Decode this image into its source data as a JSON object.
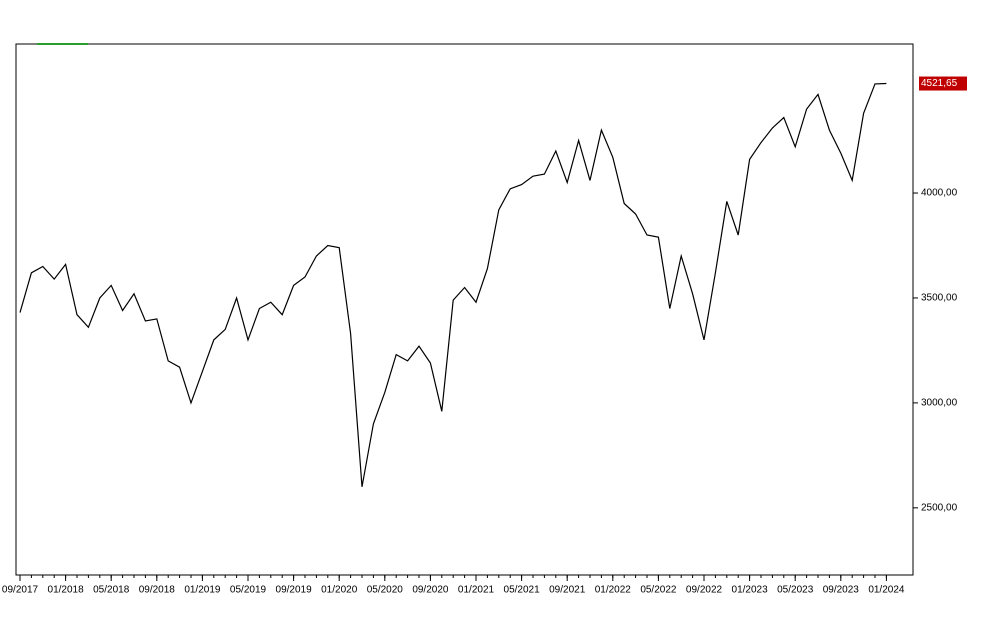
{
  "chart_data": {
    "type": "line",
    "color": "#000000",
    "x": [
      "09/2017",
      "10/2017",
      "11/2017",
      "12/2017",
      "01/2018",
      "02/2018",
      "03/2018",
      "04/2018",
      "05/2018",
      "06/2018",
      "07/2018",
      "08/2018",
      "09/2018",
      "10/2018",
      "11/2018",
      "12/2018",
      "01/2019",
      "02/2019",
      "03/2019",
      "04/2019",
      "05/2019",
      "06/2019",
      "07/2019",
      "08/2019",
      "09/2019",
      "10/2019",
      "11/2019",
      "12/2019",
      "01/2020",
      "02/2020",
      "03/2020",
      "04/2020",
      "05/2020",
      "06/2020",
      "07/2020",
      "08/2020",
      "09/2020",
      "10/2020",
      "11/2020",
      "12/2020",
      "01/2021",
      "02/2021",
      "03/2021",
      "04/2021",
      "05/2021",
      "06/2021",
      "07/2021",
      "08/2021",
      "09/2021",
      "10/2021",
      "11/2021",
      "12/2021",
      "01/2022",
      "02/2022",
      "03/2022",
      "04/2022",
      "05/2022",
      "06/2022",
      "07/2022",
      "08/2022",
      "09/2022",
      "10/2022",
      "11/2022",
      "12/2022",
      "01/2023",
      "02/2023",
      "03/2023",
      "04/2023",
      "05/2023",
      "06/2023",
      "07/2023",
      "08/2023",
      "09/2023",
      "10/2023",
      "11/2023",
      "12/2023",
      "01/2024"
    ],
    "values": [
      3430,
      3620,
      3650,
      3590,
      3660,
      3420,
      3360,
      3500,
      3560,
      3440,
      3520,
      3390,
      3400,
      3200,
      3170,
      3000,
      3150,
      3300,
      3350,
      3500,
      3300,
      3450,
      3480,
      3420,
      3560,
      3600,
      3700,
      3750,
      3740,
      3330,
      2600,
      2900,
      3050,
      3230,
      3200,
      3270,
      3190,
      2960,
      3490,
      3550,
      3480,
      3640,
      3920,
      4020,
      4040,
      4080,
      4090,
      4200,
      4050,
      4250,
      4060,
      4300,
      4170,
      3950,
      3900,
      3800,
      3790,
      3450,
      3700,
      3520,
      3300,
      3620,
      3960,
      3800,
      4160,
      4240,
      4310,
      4360,
      4220,
      4400,
      4470,
      4300,
      4190,
      4060,
      4380,
      4520,
      4521.65
    ],
    "xticks": [
      "09/2017",
      "01/2018",
      "05/2018",
      "09/2018",
      "01/2019",
      "05/2019",
      "09/2019",
      "01/2020",
      "05/2020",
      "09/2020",
      "01/2021",
      "05/2021",
      "09/2021",
      "01/2022",
      "05/2022",
      "09/2022",
      "01/2023",
      "05/2023",
      "09/2023",
      "01/2024"
    ],
    "ylim": [
      2180,
      4710
    ],
    "yticks": [
      {
        "value": 2500,
        "label": "2500,00"
      },
      {
        "value": 3000,
        "label": "3000,00"
      },
      {
        "value": 3500,
        "label": "3500,00"
      },
      {
        "value": 4000,
        "label": "4000,00"
      }
    ],
    "last_price": {
      "value": 4521.65,
      "label": "4521,65"
    }
  }
}
